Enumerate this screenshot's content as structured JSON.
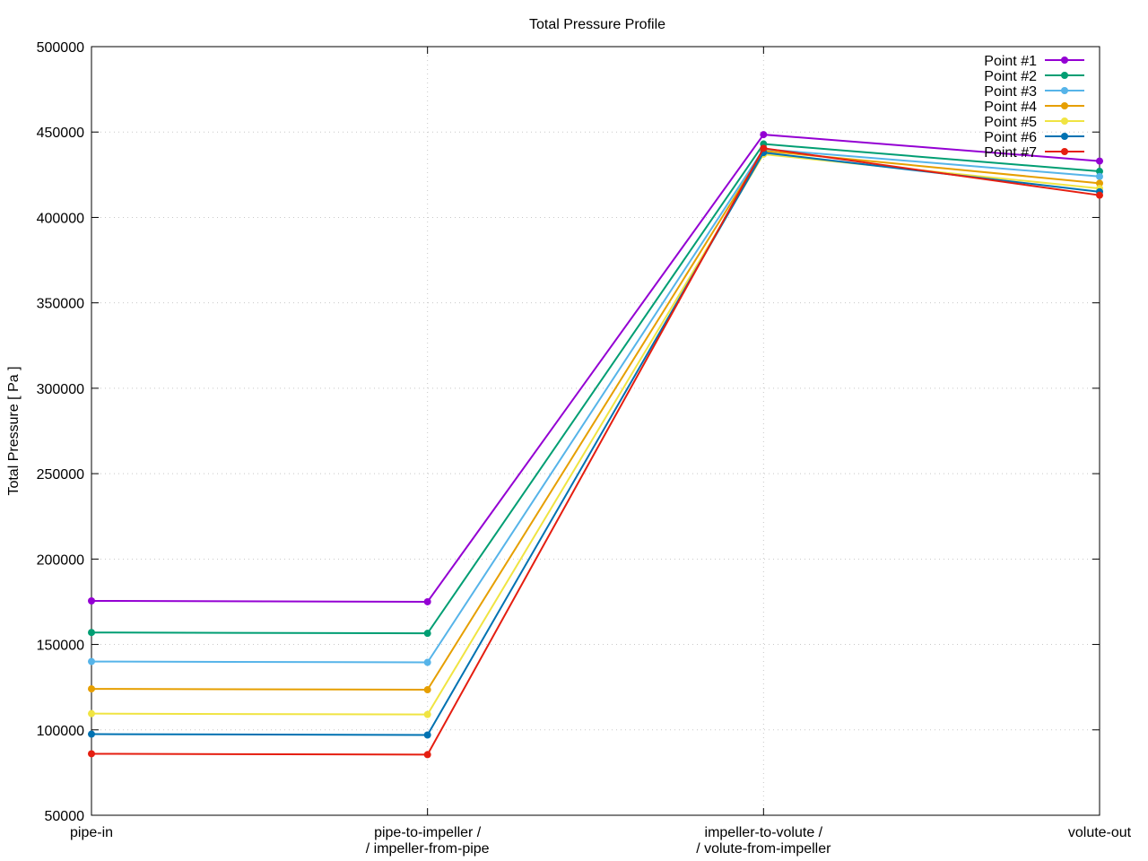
{
  "chart_data": {
    "type": "line",
    "title": "Total Pressure Profile",
    "xlabel": "",
    "ylabel": "Total Pressure [ Pa ]",
    "ylim": [
      50000,
      500000
    ],
    "yticks": [
      50000,
      100000,
      150000,
      200000,
      250000,
      300000,
      350000,
      400000,
      450000,
      500000
    ],
    "ytick_labels": [
      "50000",
      "100000",
      "150000",
      "200000",
      "250000",
      "300000",
      "350000",
      "400000",
      "450000",
      "500000"
    ],
    "categories": [
      [
        "pipe-in"
      ],
      [
        "pipe-to-impeller /",
        "/ impeller-from-pipe"
      ],
      [
        "impeller-to-volute /",
        "/ volute-from-impeller"
      ],
      [
        "volute-out"
      ]
    ],
    "grid": true,
    "legend_position": "top-right",
    "series": [
      {
        "name": "Point #1",
        "color": "#9400d3",
        "values": [
          175500,
          175000,
          448500,
          433000
        ]
      },
      {
        "name": "Point #2",
        "color": "#009e73",
        "values": [
          157000,
          156500,
          443000,
          427000
        ]
      },
      {
        "name": "Point #3",
        "color": "#56b4e9",
        "values": [
          140000,
          139500,
          440000,
          424000
        ]
      },
      {
        "name": "Point #4",
        "color": "#e69f00",
        "values": [
          124000,
          123500,
          439000,
          420000
        ]
      },
      {
        "name": "Point #5",
        "color": "#f0e442",
        "values": [
          109500,
          109000,
          437000,
          417000
        ]
      },
      {
        "name": "Point #6",
        "color": "#0072b2",
        "values": [
          97500,
          97000,
          438000,
          415000
        ]
      },
      {
        "name": "Point #7",
        "color": "#e51e10",
        "values": [
          86000,
          85500,
          440500,
          413000
        ]
      }
    ]
  }
}
